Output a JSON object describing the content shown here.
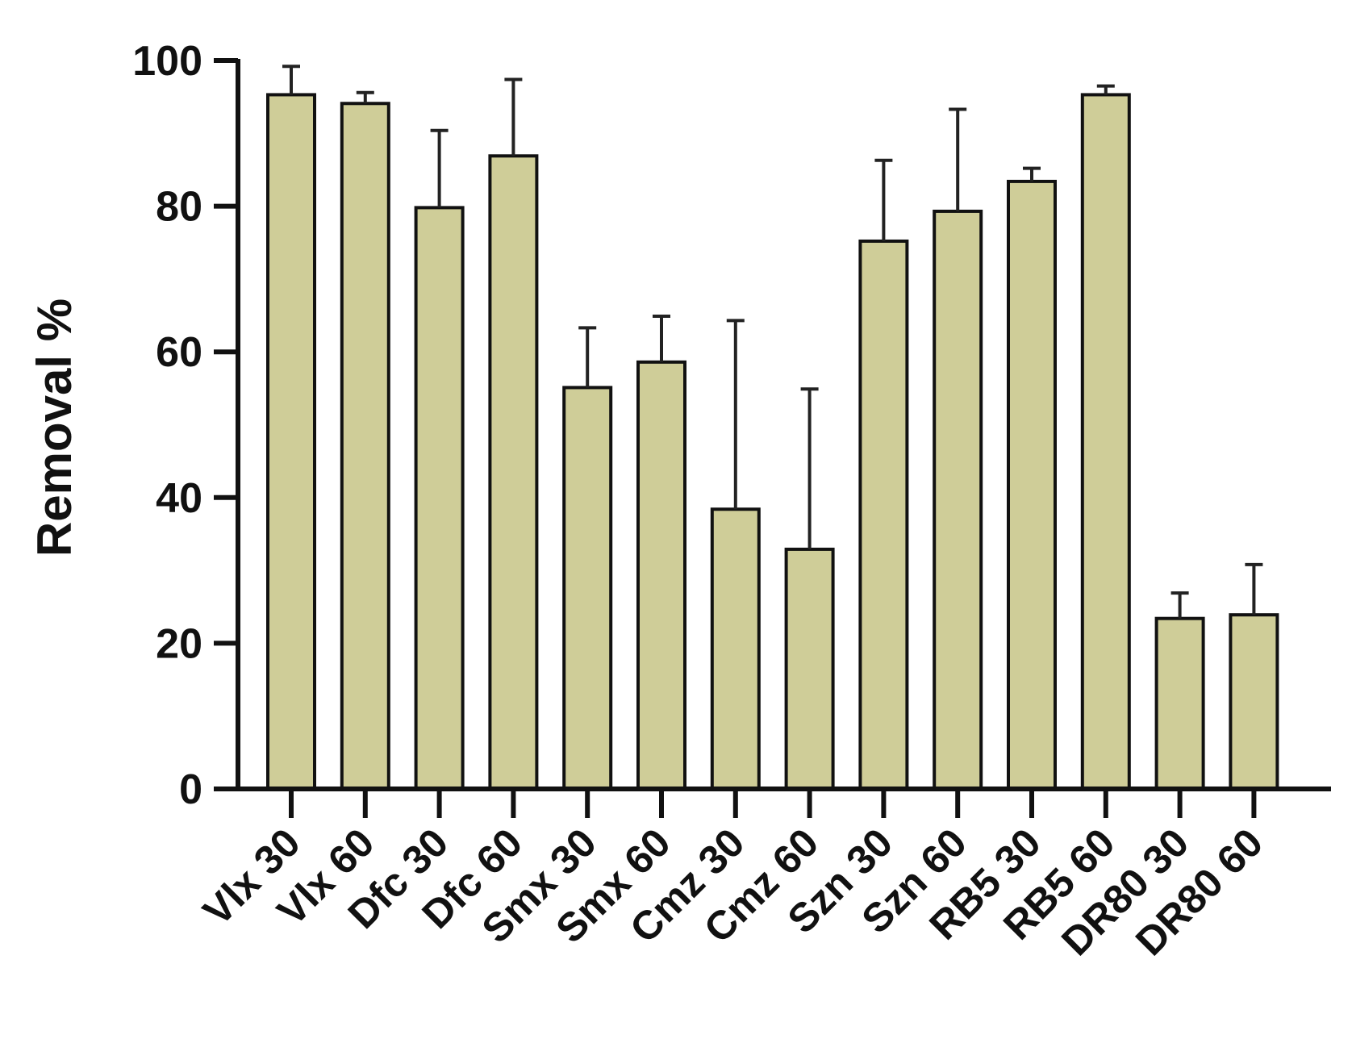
{
  "chart_data": {
    "type": "bar",
    "title": "",
    "xlabel": "",
    "ylabel": "Removal %",
    "ylim": [
      0,
      100
    ],
    "yticks": [
      0,
      20,
      40,
      60,
      80,
      100
    ],
    "categories": [
      "Vlx 30",
      "Vlx 60",
      "Dfc 30",
      "Dfc 60",
      "Smx 30",
      "Smx 60",
      "Cmz 30",
      "Cmz 60",
      "Szn 30",
      "Szn 60",
      "RB5 30",
      "RB5 60",
      "DR80 30",
      "DR80 60"
    ],
    "values": [
      95.3,
      94.1,
      79.8,
      86.9,
      55.1,
      58.6,
      38.4,
      32.9,
      75.2,
      79.3,
      83.4,
      95.3,
      23.4,
      23.9
    ],
    "error_upper": [
      99.2,
      95.6,
      90.4,
      97.4,
      63.3,
      64.9,
      64.3,
      54.9,
      86.3,
      93.3,
      85.2,
      96.5,
      26.9,
      30.8
    ],
    "grid": false,
    "legend": "none",
    "colors": {
      "bar_fill": "#cfcd98",
      "bar_edge": "#111111",
      "axis": "#111111",
      "error_bar": "#222222"
    }
  }
}
